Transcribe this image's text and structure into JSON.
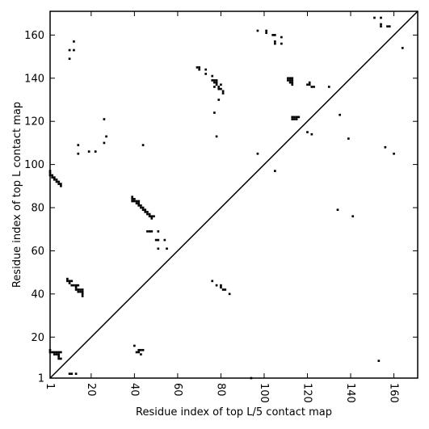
{
  "chart_data": {
    "type": "scatter",
    "marker": "square",
    "color": "#000000",
    "xlabel": "Residue index of top L/5 contact map",
    "ylabel": "Residue index of top L contact map",
    "xlim": [
      1,
      171
    ],
    "ylim": [
      1,
      171
    ],
    "x_ticks": [
      1,
      20,
      40,
      60,
      80,
      100,
      120,
      140,
      160
    ],
    "y_ticks": [
      1,
      20,
      40,
      60,
      80,
      100,
      120,
      140,
      160
    ],
    "x_tick_labels": [
      "1",
      "20",
      "40",
      "60",
      "80",
      "100",
      "120",
      "140",
      "160"
    ],
    "y_tick_labels": [
      "1",
      "20",
      "40",
      "60",
      "80",
      "100",
      "120",
      "140",
      "160"
    ],
    "x_tick_rotation": -90,
    "diagonal": true,
    "grid": false,
    "points": [
      [
        1,
        97
      ],
      [
        1,
        96
      ],
      [
        1,
        95
      ],
      [
        2,
        95
      ],
      [
        2,
        94
      ],
      [
        3,
        94
      ],
      [
        3,
        93
      ],
      [
        4,
        93
      ],
      [
        4,
        92
      ],
      [
        5,
        92
      ],
      [
        5,
        91
      ],
      [
        6,
        91
      ],
      [
        6,
        90
      ],
      [
        10,
        149
      ],
      [
        10,
        153
      ],
      [
        12,
        153
      ],
      [
        12,
        157
      ],
      [
        14,
        109
      ],
      [
        14,
        105
      ],
      [
        19,
        106
      ],
      [
        22,
        106
      ],
      [
        26,
        121
      ],
      [
        26,
        110
      ],
      [
        27,
        113
      ],
      [
        44,
        109
      ],
      [
        39,
        85
      ],
      [
        39,
        84
      ],
      [
        39,
        83
      ],
      [
        40,
        84
      ],
      [
        40,
        83
      ],
      [
        41,
        83
      ],
      [
        41,
        82
      ],
      [
        42,
        83
      ],
      [
        42,
        82
      ],
      [
        42,
        81
      ],
      [
        43,
        81
      ],
      [
        43,
        80
      ],
      [
        44,
        80
      ],
      [
        44,
        79
      ],
      [
        45,
        79
      ],
      [
        45,
        78
      ],
      [
        46,
        78
      ],
      [
        46,
        77
      ],
      [
        47,
        77
      ],
      [
        47,
        76
      ],
      [
        48,
        76
      ],
      [
        48,
        75
      ],
      [
        49,
        76
      ],
      [
        46,
        69
      ],
      [
        47,
        69
      ],
      [
        48,
        69
      ],
      [
        50,
        65
      ],
      [
        51,
        65
      ],
      [
        51,
        69
      ],
      [
        54,
        65
      ],
      [
        51,
        61
      ],
      [
        55,
        61
      ],
      [
        9,
        47
      ],
      [
        9,
        46
      ],
      [
        10,
        46
      ],
      [
        10,
        45
      ],
      [
        11,
        46
      ],
      [
        11,
        44
      ],
      [
        12,
        44
      ],
      [
        13,
        44
      ],
      [
        13,
        43
      ],
      [
        13,
        42
      ],
      [
        14,
        42
      ],
      [
        14,
        41
      ],
      [
        14,
        44
      ],
      [
        15,
        42
      ],
      [
        15,
        41
      ],
      [
        16,
        42
      ],
      [
        16,
        41
      ],
      [
        16,
        40
      ],
      [
        16,
        39
      ],
      [
        1,
        14
      ],
      [
        1,
        13
      ],
      [
        2,
        13
      ],
      [
        3,
        13
      ],
      [
        4,
        13
      ],
      [
        5,
        13
      ],
      [
        3,
        12
      ],
      [
        4,
        12
      ],
      [
        5,
        12
      ],
      [
        5,
        11
      ],
      [
        5,
        10
      ],
      [
        6,
        10
      ],
      [
        6,
        13
      ],
      [
        10,
        3
      ],
      [
        11,
        3
      ],
      [
        13,
        3
      ],
      [
        40,
        16
      ],
      [
        41,
        13
      ],
      [
        42,
        13
      ],
      [
        42,
        14
      ],
      [
        43,
        14
      ],
      [
        43,
        12
      ],
      [
        44,
        14
      ],
      [
        69,
        145
      ],
      [
        70,
        145
      ],
      [
        70,
        144
      ],
      [
        73,
        144
      ],
      [
        73,
        142
      ],
      [
        76,
        141
      ],
      [
        76,
        139
      ],
      [
        77,
        139
      ],
      [
        77,
        138
      ],
      [
        78,
        139
      ],
      [
        78,
        138
      ],
      [
        78,
        137
      ],
      [
        77,
        136
      ],
      [
        79,
        136
      ],
      [
        79,
        135
      ],
      [
        80,
        135
      ],
      [
        80,
        137
      ],
      [
        81,
        134
      ],
      [
        81,
        133
      ],
      [
        79,
        130
      ],
      [
        77,
        124
      ],
      [
        78,
        113
      ],
      [
        97,
        162
      ],
      [
        101,
        162
      ],
      [
        101,
        161
      ],
      [
        104,
        160
      ],
      [
        105,
        160
      ],
      [
        105,
        157
      ],
      [
        105,
        156
      ],
      [
        108,
        159
      ],
      [
        108,
        156
      ],
      [
        111,
        140
      ],
      [
        111,
        139
      ],
      [
        112,
        140
      ],
      [
        112,
        139
      ],
      [
        112,
        138
      ],
      [
        113,
        140
      ],
      [
        113,
        139
      ],
      [
        113,
        138
      ],
      [
        113,
        137
      ],
      [
        113,
        122
      ],
      [
        113,
        121
      ],
      [
        114,
        122
      ],
      [
        114,
        121
      ],
      [
        115,
        122
      ],
      [
        115,
        121
      ],
      [
        116,
        122
      ],
      [
        120,
        137
      ],
      [
        121,
        137
      ],
      [
        121,
        138
      ],
      [
        122,
        136
      ],
      [
        123,
        136
      ],
      [
        130,
        136
      ],
      [
        135,
        123
      ],
      [
        120,
        115
      ],
      [
        122,
        114
      ],
      [
        139,
        112
      ],
      [
        97,
        105
      ],
      [
        105,
        97
      ],
      [
        134,
        79
      ],
      [
        141,
        76
      ],
      [
        76,
        46
      ],
      [
        78,
        44
      ],
      [
        80,
        44
      ],
      [
        80,
        43
      ],
      [
        81,
        42
      ],
      [
        82,
        42
      ],
      [
        84,
        40
      ],
      [
        94,
        1
      ],
      [
        151,
        168
      ],
      [
        154,
        168
      ],
      [
        154,
        165
      ],
      [
        154,
        164
      ],
      [
        157,
        164
      ],
      [
        158,
        164
      ],
      [
        164,
        154
      ],
      [
        156,
        108
      ],
      [
        160,
        105
      ],
      [
        153,
        9
      ]
    ]
  }
}
